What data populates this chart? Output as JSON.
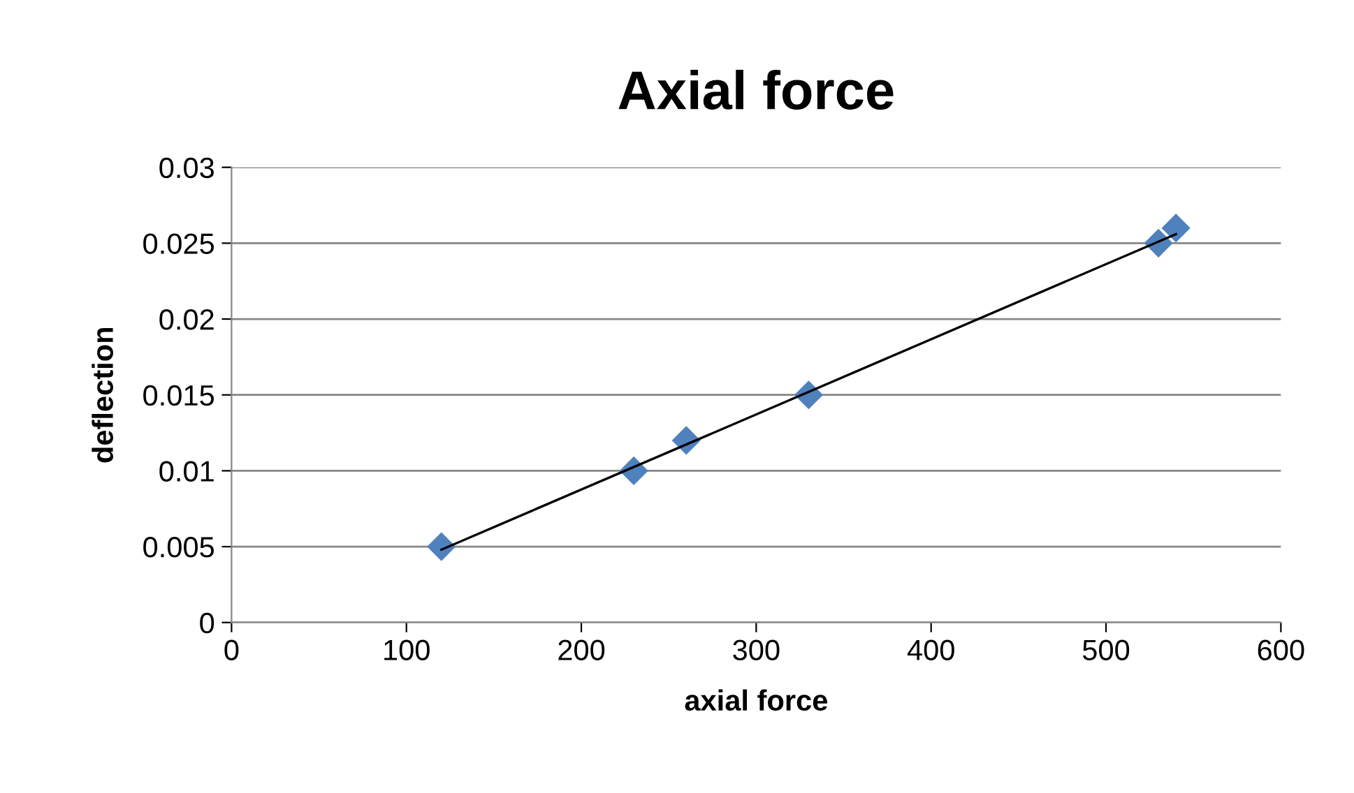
{
  "chart_data": {
    "type": "scatter",
    "title": "Axial force",
    "xlabel": "axial force",
    "ylabel": "deflection",
    "xlim": [
      0,
      600
    ],
    "xticks": [
      0,
      100,
      200,
      300,
      400,
      500,
      600
    ],
    "ylim": [
      0,
      0.03
    ],
    "yticks": [
      0,
      0.005,
      0.01,
      0.015,
      0.02,
      0.025,
      0.03
    ],
    "grid": "y",
    "legend": false,
    "series": [
      {
        "marker": "diamond",
        "color": "#4f81bd",
        "x": [
          120,
          230,
          260,
          330,
          530,
          540
        ],
        "values": [
          0.005,
          0.01,
          0.012,
          0.015,
          0.025,
          0.026
        ]
      },
      {
        "type": "line",
        "marker": "none",
        "color": "#000000",
        "x": [
          120,
          540
        ],
        "values": [
          0.0048,
          0.0256
        ]
      }
    ]
  }
}
